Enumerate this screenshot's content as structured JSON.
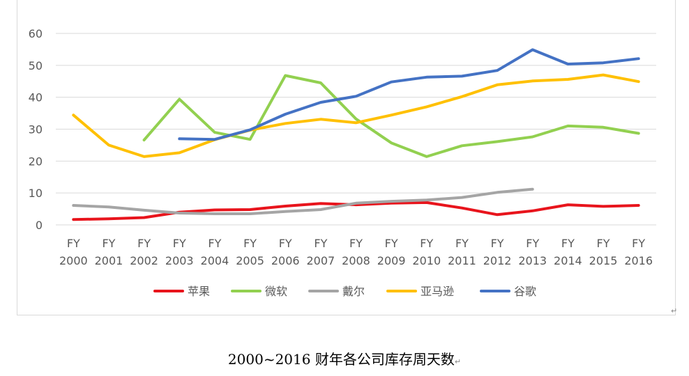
{
  "chart_data": {
    "type": "line",
    "title": "",
    "xlabel": "",
    "ylabel": "",
    "ylim": [
      0,
      60
    ],
    "yticks": [
      0,
      10,
      20,
      30,
      40,
      50,
      60
    ],
    "grid": true,
    "legend_position": "bottom",
    "categories": [
      "FY 2000",
      "FY 2001",
      "FY 2002",
      "FY 2003",
      "FY 2004",
      "FY 2005",
      "FY 2006",
      "FY 2007",
      "FY 2008",
      "FY 2009",
      "FY 2010",
      "FY 2011",
      "FY 2012",
      "FY 2013",
      "FY 2014",
      "FY 2015",
      "FY 2016"
    ],
    "series": [
      {
        "name": "苹果",
        "color": "#e8141c",
        "values": [
          1.7,
          1.9,
          2.3,
          4.0,
          4.7,
          4.8,
          5.9,
          6.7,
          6.3,
          6.8,
          7.0,
          5.3,
          3.2,
          4.4,
          6.3,
          5.8,
          6.1
        ]
      },
      {
        "name": "微软",
        "color": "#92d050",
        "values": [
          null,
          null,
          26.6,
          39.4,
          29.0,
          26.8,
          46.8,
          44.5,
          33.2,
          25.7,
          21.4,
          24.8,
          26.1,
          27.6,
          31.0,
          30.6,
          28.7
        ]
      },
      {
        "name": "戴尔",
        "color": "#a5a5a5",
        "values": [
          6.1,
          5.6,
          4.6,
          3.7,
          3.5,
          3.5,
          4.2,
          4.8,
          6.8,
          7.4,
          7.8,
          8.6,
          10.2,
          11.2,
          null,
          null,
          null
        ]
      },
      {
        "name": "亚马逊",
        "color": "#ffc000",
        "values": [
          34.4,
          25.0,
          21.4,
          22.6,
          26.7,
          29.7,
          31.8,
          33.1,
          32.0,
          34.4,
          37.0,
          40.2,
          43.9,
          45.1,
          45.6,
          47.0,
          44.9
        ]
      },
      {
        "name": "谷歌",
        "color": "#4472c4",
        "values": [
          null,
          null,
          null,
          27.0,
          26.8,
          29.8,
          34.7,
          38.4,
          40.3,
          44.8,
          46.3,
          46.6,
          48.4,
          54.9,
          50.4,
          50.8,
          52.1
        ]
      }
    ]
  },
  "caption": {
    "text": "2000~2016 财年各公司库存周天数"
  }
}
